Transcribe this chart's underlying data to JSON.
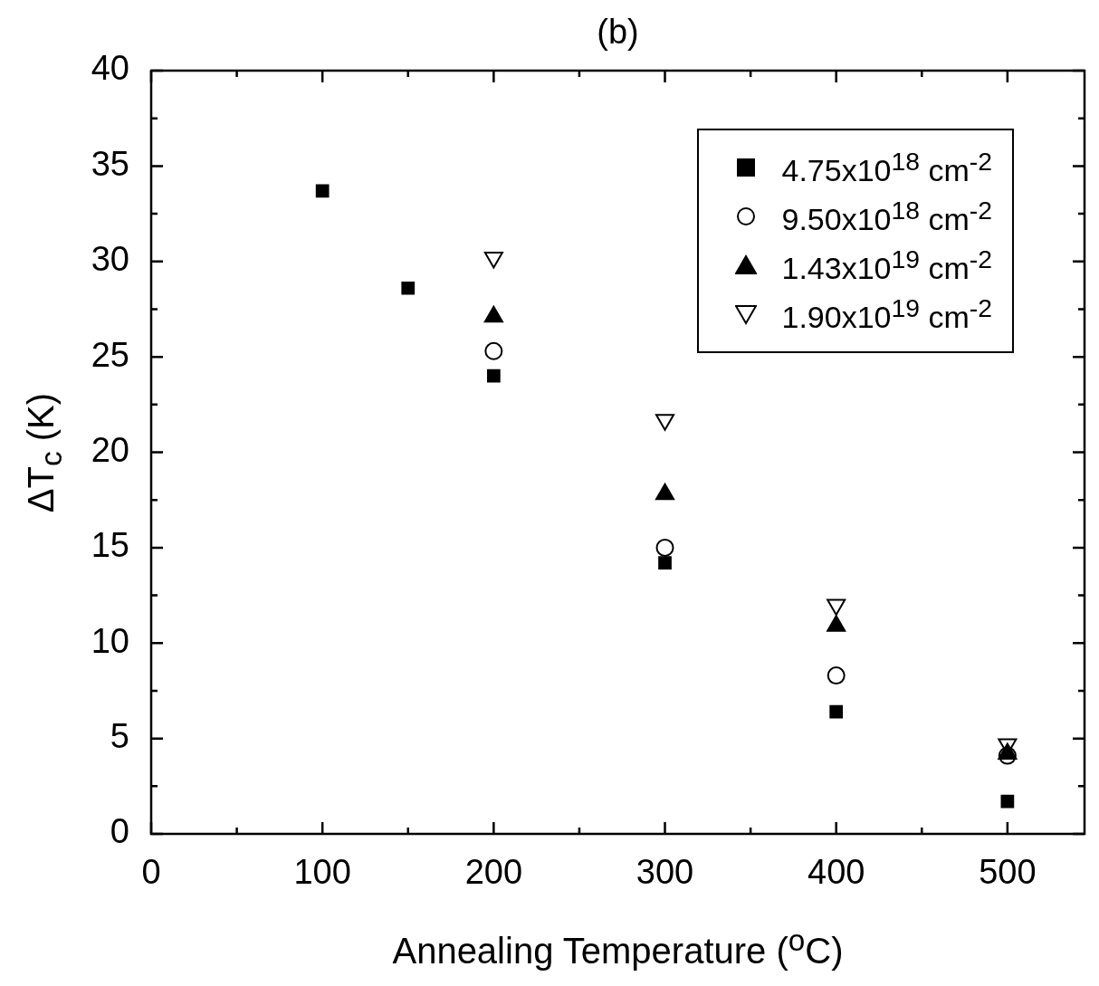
{
  "chart_data": {
    "type": "scatter",
    "title": "(b)",
    "xlabel": "Annealing Temperature ($^{o}$C)",
    "ylabel": "ΔT$_{c}$ (K)",
    "xlim": [
      0,
      545
    ],
    "xticks": [
      0,
      {
        "value": 50,
        "label": null
      },
      100,
      {
        "value": 150,
        "label": null
      },
      200,
      {
        "value": 250,
        "label": null
      },
      300,
      {
        "value": 350,
        "label": null
      },
      400,
      {
        "value": 450,
        "label": null
      },
      500
    ],
    "ylim": [
      0,
      40
    ],
    "yticks": [
      0,
      {
        "value": 2.5,
        "label": null
      },
      5,
      {
        "value": 7.5,
        "label": null
      },
      10,
      {
        "value": 12.5,
        "label": null
      },
      15,
      {
        "value": 17.5,
        "label": null
      },
      20,
      {
        "value": 22.5,
        "label": null
      },
      25,
      {
        "value": 27.5,
        "label": null
      },
      30,
      {
        "value": 32.5,
        "label": null
      },
      35,
      {
        "value": 37.5,
        "label": null
      },
      40
    ],
    "legend": "top right",
    "grid": false,
    "series": [
      {
        "name": "4.75x10$^{18}$ cm$^{-2}$",
        "color": "#000000",
        "marker": "square",
        "x": [
          100,
          150,
          200,
          300,
          400,
          500
        ],
        "values": [
          33.7,
          28.6,
          24.0,
          14.2,
          6.4,
          1.7
        ]
      },
      {
        "name": "9.50x10$^{18}$ cm$^{-2}$",
        "color": "#000000",
        "marker": "circle",
        "x": [
          200,
          300,
          400,
          500
        ],
        "values": [
          25.3,
          15.0,
          8.3,
          4.1
        ]
      },
      {
        "name": "1.43x10$^{19}$ cm$^{-2}$",
        "color": "#000000",
        "marker": "triangle",
        "x": [
          200,
          300,
          400,
          500
        ],
        "values": [
          27.1,
          17.8,
          10.9,
          4.2
        ]
      },
      {
        "name": "1.90x10$^{19}$ cm$^{-2}$",
        "color": "#000000",
        "marker": "triangle-down",
        "x": [
          200,
          300,
          400,
          500
        ],
        "values": [
          30.2,
          21.7,
          12.0,
          4.7
        ]
      }
    ]
  }
}
